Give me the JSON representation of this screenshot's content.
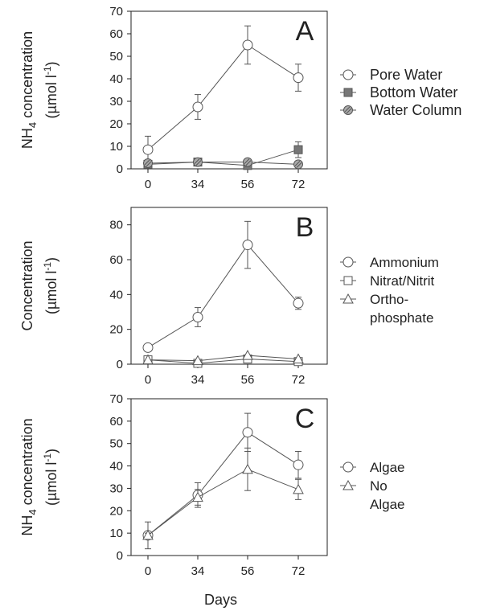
{
  "chart_data": [
    {
      "type": "line",
      "panel_letter": "A",
      "categories": [
        "0",
        "34",
        "56",
        "72"
      ],
      "ylabel_main": "NH",
      "ylabel_sub": "4",
      "ylabel_rest": " concentration",
      "yunit_text": "(µmol l",
      "yunit_sup": "-1",
      "yunit_close": ")",
      "ylim": [
        0,
        70
      ],
      "yticks": [
        0,
        10,
        20,
        30,
        40,
        50,
        60,
        70
      ],
      "xlabel": "",
      "legend_position": "right",
      "series": [
        {
          "name": "Pore Water",
          "marker": "circle",
          "fill": "#ffffff",
          "values": [
            8.5,
            27.5,
            55,
            40.5
          ],
          "errors": [
            6,
            5.5,
            8.5,
            6
          ]
        },
        {
          "name": "Bottom Water",
          "marker": "square",
          "fill": "#777777",
          "values": [
            2,
            3,
            1.5,
            8.5
          ],
          "errors": [
            0.5,
            0.5,
            0.5,
            3.5
          ]
        },
        {
          "name": "Water Column",
          "marker": "circle-hatched",
          "fill": "#aaaaaa",
          "values": [
            2.5,
            3,
            3,
            2
          ],
          "errors": [
            0.3,
            0.3,
            0.5,
            0.3
          ]
        }
      ]
    },
    {
      "type": "line",
      "panel_letter": "B",
      "categories": [
        "0",
        "34",
        "56",
        "72"
      ],
      "ylabel_main": "Concentration",
      "ylabel_sub": "",
      "ylabel_rest": "",
      "yunit_text": "(µmol l",
      "yunit_sup": "-1",
      "yunit_close": ")",
      "ylim": [
        0,
        90
      ],
      "yticks": [
        0,
        20,
        40,
        60,
        80
      ],
      "xlabel": "",
      "legend_position": "right",
      "series": [
        {
          "name": "Ammonium",
          "marker": "circle",
          "fill": "#ffffff",
          "values": [
            9.5,
            27,
            68.5,
            35
          ],
          "errors": [
            1,
            5.5,
            13.5,
            3.5
          ]
        },
        {
          "name": "Nitrat/Nitrit",
          "marker": "square",
          "fill": "#ffffff",
          "values": [
            2.5,
            0.5,
            3,
            1.5
          ],
          "errors": [
            0.3,
            0.3,
            0.5,
            0.3
          ]
        },
        {
          "name": "Ortho-\nphosphate",
          "marker": "triangle",
          "fill": "#ffffff",
          "values": [
            2.5,
            2,
            5,
            3
          ],
          "errors": [
            0.3,
            0.3,
            0.5,
            0.3
          ]
        }
      ]
    },
    {
      "type": "line",
      "panel_letter": "C",
      "categories": [
        "0",
        "34",
        "56",
        "72"
      ],
      "ylabel_main": "NH",
      "ylabel_sub": "4",
      "ylabel_rest": " concentration",
      "yunit_text": "(µmol l",
      "yunit_sup": "-1",
      "yunit_close": ")",
      "ylim": [
        0,
        70
      ],
      "yticks": [
        0,
        10,
        20,
        30,
        40,
        50,
        60,
        70
      ],
      "xlabel": "Days",
      "legend_position": "right",
      "series": [
        {
          "name": "Algae",
          "marker": "circle",
          "fill": "#ffffff",
          "values": [
            9,
            27,
            55,
            40.5
          ],
          "errors": [
            6,
            5.5,
            8.5,
            6
          ]
        },
        {
          "name": "No\nAlgae",
          "marker": "triangle",
          "fill": "#ffffff",
          "values": [
            9,
            26,
            38.5,
            29.5
          ],
          "errors": [
            1,
            3.5,
            9.5,
            4.5
          ]
        }
      ]
    }
  ],
  "colors": {
    "axis": "#222222",
    "line": "#555555",
    "marker_stroke": "#555555",
    "text": "#222222"
  }
}
